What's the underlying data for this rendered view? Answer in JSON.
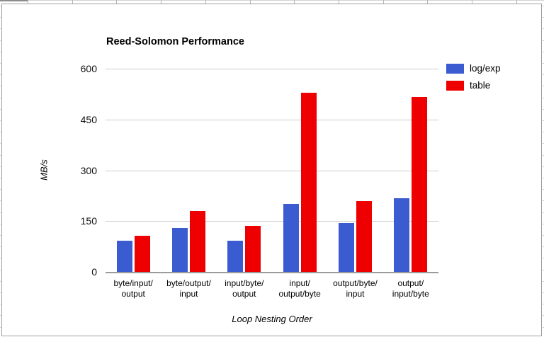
{
  "chart_data": {
    "type": "bar",
    "title": "Reed-Solomon Performance",
    "xlabel": "Loop Nesting Order",
    "ylabel": "MB/s",
    "ylim": [
      0,
      600
    ],
    "yticks": [
      0,
      150,
      300,
      450,
      600
    ],
    "grid": true,
    "legend_position": "top-right",
    "categories": [
      "byte/input/output",
      "byte/output/input",
      "input/byte/output",
      "input/output/byte",
      "output/byte/input",
      "output/input/byte"
    ],
    "category_label_lines": [
      [
        "byte/input/",
        "output"
      ],
      [
        "byte/output/",
        "input"
      ],
      [
        "input/byte/",
        "output"
      ],
      [
        "input/",
        "output/byte"
      ],
      [
        "output/byte/",
        "input"
      ],
      [
        "output/",
        "input/byte"
      ]
    ],
    "series": [
      {
        "name": "log/exp",
        "color": "#3B5BD1",
        "values": [
          93,
          129,
          93,
          200,
          144,
          218
        ]
      },
      {
        "name": "table",
        "color": "#EE0000",
        "values": [
          107,
          180,
          136,
          528,
          210,
          516
        ]
      }
    ]
  }
}
